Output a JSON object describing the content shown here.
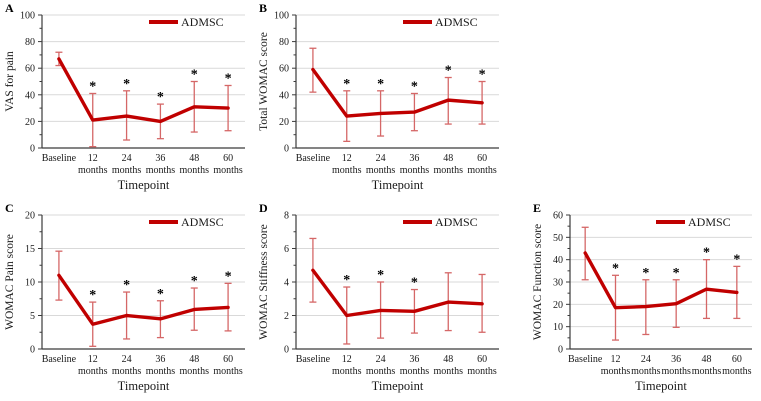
{
  "figure": {
    "legend_label": "ADMSC",
    "xlabel": "Timepoint",
    "star_glyph": "*",
    "line_color": "#c00000",
    "error_color": "#d56767",
    "grid_color": "#d9d9d9",
    "axis_color": "#3b3b3b",
    "text_color": "#1a1a1a"
  },
  "chart_data": [
    {
      "type": "line",
      "panel": "A",
      "ylabel": "VAS for pain",
      "xlabel": "Timepoint",
      "legend": "ADMSC",
      "legend_position": "top-right",
      "grid": true,
      "categories": [
        "Baseline",
        "12 months",
        "24 months",
        "36 months",
        "48 months",
        "60 months"
      ],
      "ylim": [
        0,
        100
      ],
      "yticks": [
        0,
        20,
        40,
        60,
        80,
        100
      ],
      "series": [
        {
          "name": "ADMSC",
          "values": [
            67,
            21,
            24,
            20,
            31,
            30
          ],
          "err_low": [
            62,
            1,
            6,
            7,
            12,
            13
          ],
          "err_high": [
            72,
            41,
            43,
            33,
            50,
            47
          ]
        }
      ],
      "significant": [
        false,
        true,
        true,
        true,
        true,
        true
      ]
    },
    {
      "type": "line",
      "panel": "B",
      "ylabel": "Total WOMAC score",
      "xlabel": "Timepoint",
      "legend": "ADMSC",
      "legend_position": "top-right",
      "grid": true,
      "categories": [
        "Baseline",
        "12 months",
        "24 months",
        "36 months",
        "48 months",
        "60 months"
      ],
      "ylim": [
        0,
        100
      ],
      "yticks": [
        0,
        20,
        40,
        60,
        80,
        100
      ],
      "series": [
        {
          "name": "ADMSC",
          "values": [
            59,
            24,
            26,
            27,
            36,
            34
          ],
          "err_low": [
            42,
            5,
            9,
            13,
            18,
            18
          ],
          "err_high": [
            75,
            43,
            43,
            41,
            53,
            50
          ]
        }
      ],
      "significant": [
        false,
        true,
        true,
        true,
        true,
        true
      ]
    },
    {
      "type": "line",
      "panel": "C",
      "ylabel": "WOMAC Pain score",
      "xlabel": "Timepoint",
      "legend": "ADMSC",
      "legend_position": "top-right",
      "grid": true,
      "categories": [
        "Baseline",
        "12 months",
        "24 months",
        "36 months",
        "48 months",
        "60 months"
      ],
      "ylim": [
        0,
        20
      ],
      "yticks": [
        0,
        5,
        10,
        15,
        20
      ],
      "series": [
        {
          "name": "ADMSC",
          "values": [
            11,
            3.7,
            5,
            4.5,
            5.9,
            6.2
          ],
          "err_low": [
            7.3,
            0.4,
            1.5,
            1.7,
            2.8,
            2.7
          ],
          "err_high": [
            14.6,
            7,
            8.5,
            7.2,
            9.1,
            9.8
          ]
        }
      ],
      "significant": [
        false,
        true,
        true,
        true,
        true,
        true
      ]
    },
    {
      "type": "line",
      "panel": "D",
      "ylabel": "WOMAC Stiffness score",
      "xlabel": "Timepoint",
      "legend": "ADMSC",
      "legend_position": "top-right",
      "grid": true,
      "categories": [
        "Baseline",
        "12 months",
        "24 months",
        "36 months",
        "48 months",
        "60 months"
      ],
      "ylim": [
        0,
        8
      ],
      "yticks": [
        0,
        2,
        4,
        6,
        8
      ],
      "series": [
        {
          "name": "ADMSC",
          "values": [
            4.7,
            2,
            2.3,
            2.25,
            2.8,
            2.7
          ],
          "err_low": [
            2.8,
            0.3,
            0.65,
            0.95,
            1.1,
            1
          ],
          "err_high": [
            6.6,
            3.7,
            4,
            3.55,
            4.55,
            4.45
          ]
        }
      ],
      "significant": [
        false,
        true,
        true,
        true,
        false,
        false
      ]
    },
    {
      "type": "line",
      "panel": "E",
      "ylabel": "WOMAC Function score",
      "xlabel": "Timepoint",
      "legend": "ADMSC",
      "legend_position": "top-right",
      "grid": true,
      "categories": [
        "Baseline",
        "12 months",
        "24 months",
        "36 months",
        "48 months",
        "60 months"
      ],
      "ylim": [
        0,
        60
      ],
      "yticks": [
        0,
        10,
        20,
        30,
        40,
        50,
        60
      ],
      "series": [
        {
          "name": "ADMSC",
          "values": [
            43,
            18.5,
            19,
            20.3,
            26.8,
            25.3
          ],
          "err_low": [
            31,
            4,
            6.5,
            9.7,
            13.7,
            13.7
          ],
          "err_high": [
            54.5,
            33,
            31,
            31,
            40,
            37
          ]
        }
      ],
      "significant": [
        false,
        true,
        true,
        true,
        true,
        true
      ]
    }
  ]
}
